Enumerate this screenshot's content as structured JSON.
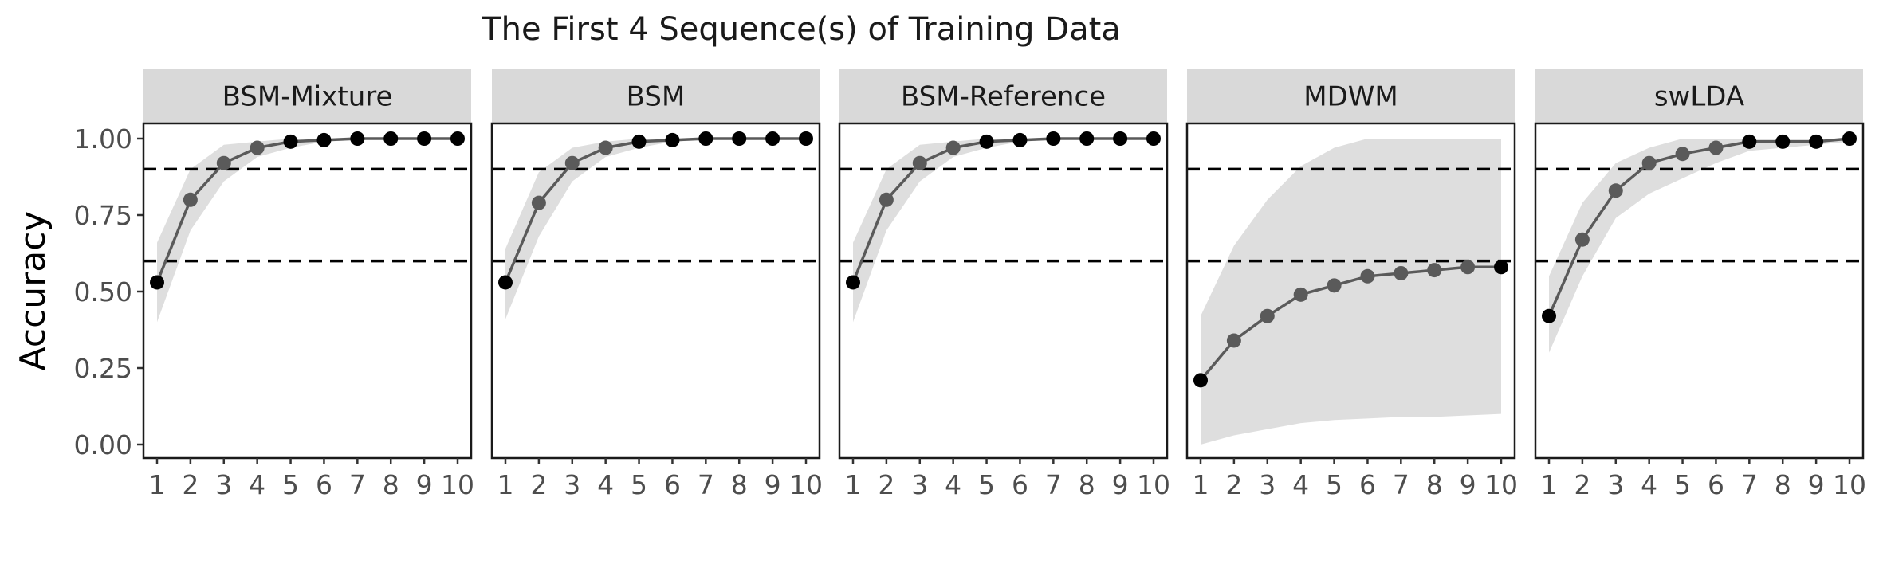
{
  "chart_data": {
    "type": "line",
    "title": "The First 4 Sequence(s) of Training Data",
    "ylabel": "Accuracy",
    "xlabel": "",
    "x": [
      1,
      2,
      3,
      4,
      5,
      6,
      7,
      8,
      9,
      10
    ],
    "x_tick_labels": [
      "1",
      "2",
      "3",
      "4",
      "5",
      "6",
      "7",
      "8",
      "9",
      "10"
    ],
    "ylim": [
      0,
      1
    ],
    "y_ticks": [
      0,
      0.25,
      0.5,
      0.75,
      1.0
    ],
    "y_tick_labels": [
      "0.00",
      "0.25",
      "0.50",
      "0.75",
      "1.00"
    ],
    "reference_lines": [
      0.6,
      0.9
    ],
    "grid": false,
    "colors": {
      "line": "#5a5a5a",
      "point_low": "#5a5a5a",
      "point_high": "#000000",
      "ribbon": "#dedede",
      "strip": "#d9d9d9",
      "reference_line": "#000000"
    },
    "panels": [
      {
        "name": "BSM-Mixture",
        "values": [
          0.53,
          0.8,
          0.92,
          0.97,
          0.99,
          0.995,
          1.0,
          1.0,
          1.0,
          1.0
        ],
        "lower": [
          0.4,
          0.7,
          0.86,
          0.94,
          0.97,
          0.99,
          0.995,
          1.0,
          1.0,
          1.0
        ],
        "upper": [
          0.66,
          0.9,
          0.98,
          0.99,
          1.0,
          1.0,
          1.0,
          1.0,
          1.0,
          1.0
        ]
      },
      {
        "name": "BSM",
        "values": [
          0.53,
          0.79,
          0.92,
          0.97,
          0.99,
          0.995,
          1.0,
          1.0,
          1.0,
          1.0
        ],
        "lower": [
          0.41,
          0.68,
          0.86,
          0.94,
          0.97,
          0.99,
          0.995,
          1.0,
          1.0,
          1.0
        ],
        "upper": [
          0.64,
          0.89,
          0.97,
          0.99,
          1.0,
          1.0,
          1.0,
          1.0,
          1.0,
          1.0
        ]
      },
      {
        "name": "BSM-Reference",
        "values": [
          0.53,
          0.8,
          0.92,
          0.97,
          0.99,
          0.995,
          1.0,
          1.0,
          1.0,
          1.0
        ],
        "lower": [
          0.4,
          0.7,
          0.86,
          0.94,
          0.97,
          0.99,
          0.995,
          1.0,
          1.0,
          1.0
        ],
        "upper": [
          0.66,
          0.9,
          0.98,
          0.99,
          1.0,
          1.0,
          1.0,
          1.0,
          1.0,
          1.0
        ]
      },
      {
        "name": "MDWM",
        "values": [
          0.21,
          0.34,
          0.42,
          0.49,
          0.52,
          0.55,
          0.56,
          0.57,
          0.58,
          0.58
        ],
        "lower": [
          0.0,
          0.03,
          0.05,
          0.07,
          0.08,
          0.085,
          0.09,
          0.09,
          0.095,
          0.1
        ],
        "upper": [
          0.42,
          0.65,
          0.8,
          0.91,
          0.97,
          1.0,
          1.0,
          1.0,
          1.0,
          1.0
        ]
      },
      {
        "name": "swLDA",
        "values": [
          0.42,
          0.67,
          0.83,
          0.92,
          0.95,
          0.97,
          0.99,
          0.99,
          0.99,
          1.0
        ],
        "lower": [
          0.3,
          0.55,
          0.74,
          0.82,
          0.87,
          0.92,
          0.96,
          0.97,
          0.98,
          0.99
        ],
        "upper": [
          0.55,
          0.79,
          0.92,
          0.97,
          1.0,
          1.0,
          1.0,
          1.0,
          1.0,
          1.0
        ]
      }
    ]
  }
}
